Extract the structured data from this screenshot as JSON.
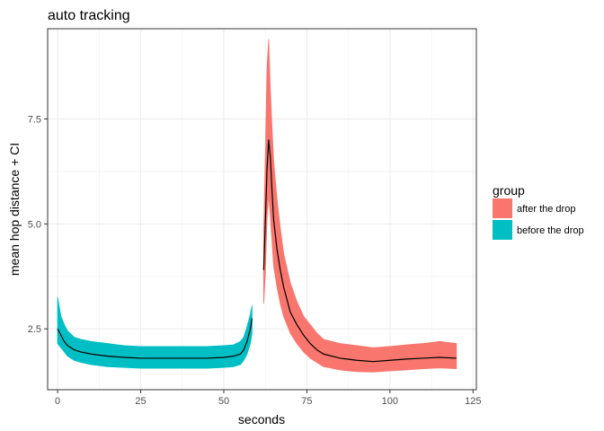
{
  "chart_data": {
    "type": "area",
    "title": "auto tracking",
    "xlabel": "seconds",
    "ylabel": "mean hop distance + CI",
    "xlim": [
      -3,
      126
    ],
    "ylim": [
      1.05,
      9.65
    ],
    "x_ticks": [
      0,
      25,
      50,
      75,
      100,
      125
    ],
    "x_tick_labels": [
      "0",
      "25",
      "50",
      "75",
      "100",
      "125"
    ],
    "y_ticks": [
      2.5,
      5.0,
      7.5
    ],
    "y_tick_labels": [
      "2.5",
      "5.0",
      "7.5"
    ],
    "grid": true,
    "legend": {
      "title": "group",
      "position": "right",
      "entries": [
        {
          "label": "after the drop",
          "color": "#F8766D"
        },
        {
          "label": "before the drop",
          "color": "#00BFC4"
        }
      ]
    },
    "mean_line_color": "#000000",
    "series": [
      {
        "name": "before the drop",
        "color": "#00BFC4",
        "x": [
          0.0,
          1,
          2,
          3,
          5,
          7,
          10,
          15,
          20,
          25,
          30,
          35,
          40,
          45,
          50,
          53,
          55,
          56,
          57,
          58,
          58.5
        ],
        "mean": [
          2.5,
          2.35,
          2.2,
          2.1,
          2.0,
          1.95,
          1.9,
          1.85,
          1.82,
          1.8,
          1.8,
          1.8,
          1.8,
          1.8,
          1.82,
          1.85,
          1.9,
          2.0,
          2.2,
          2.5,
          2.75
        ],
        "lower": [
          2.15,
          2.05,
          1.95,
          1.85,
          1.75,
          1.7,
          1.65,
          1.6,
          1.58,
          1.56,
          1.56,
          1.56,
          1.56,
          1.56,
          1.58,
          1.6,
          1.65,
          1.75,
          1.9,
          2.15,
          2.4
        ],
        "upper": [
          3.25,
          2.8,
          2.6,
          2.45,
          2.3,
          2.25,
          2.2,
          2.15,
          2.1,
          2.08,
          2.08,
          2.08,
          2.08,
          2.08,
          2.1,
          2.12,
          2.2,
          2.3,
          2.55,
          2.85,
          3.05
        ]
      },
      {
        "name": "after the drop",
        "color": "#F8766D",
        "x": [
          62,
          62.5,
          63,
          63.5,
          64,
          64.5,
          65,
          66,
          67,
          68,
          70,
          72,
          74,
          76,
          78,
          80,
          85,
          90,
          95,
          100,
          105,
          110,
          115,
          120
        ],
        "mean": [
          3.9,
          5.0,
          6.3,
          7.0,
          6.6,
          5.8,
          5.1,
          4.4,
          3.9,
          3.5,
          2.9,
          2.6,
          2.35,
          2.15,
          2.0,
          1.9,
          1.8,
          1.75,
          1.72,
          1.75,
          1.78,
          1.8,
          1.82,
          1.8
        ],
        "lower": [
          3.1,
          3.8,
          5.1,
          5.7,
          5.2,
          4.6,
          4.0,
          3.5,
          3.1,
          2.8,
          2.4,
          2.15,
          1.95,
          1.8,
          1.7,
          1.6,
          1.52,
          1.48,
          1.47,
          1.5,
          1.52,
          1.55,
          1.57,
          1.55
        ],
        "upper": [
          4.8,
          6.6,
          8.7,
          9.4,
          8.2,
          7.3,
          6.5,
          5.6,
          4.9,
          4.3,
          3.6,
          3.15,
          2.8,
          2.6,
          2.4,
          2.25,
          2.15,
          2.1,
          2.05,
          2.08,
          2.12,
          2.15,
          2.2,
          2.15
        ]
      }
    ]
  }
}
